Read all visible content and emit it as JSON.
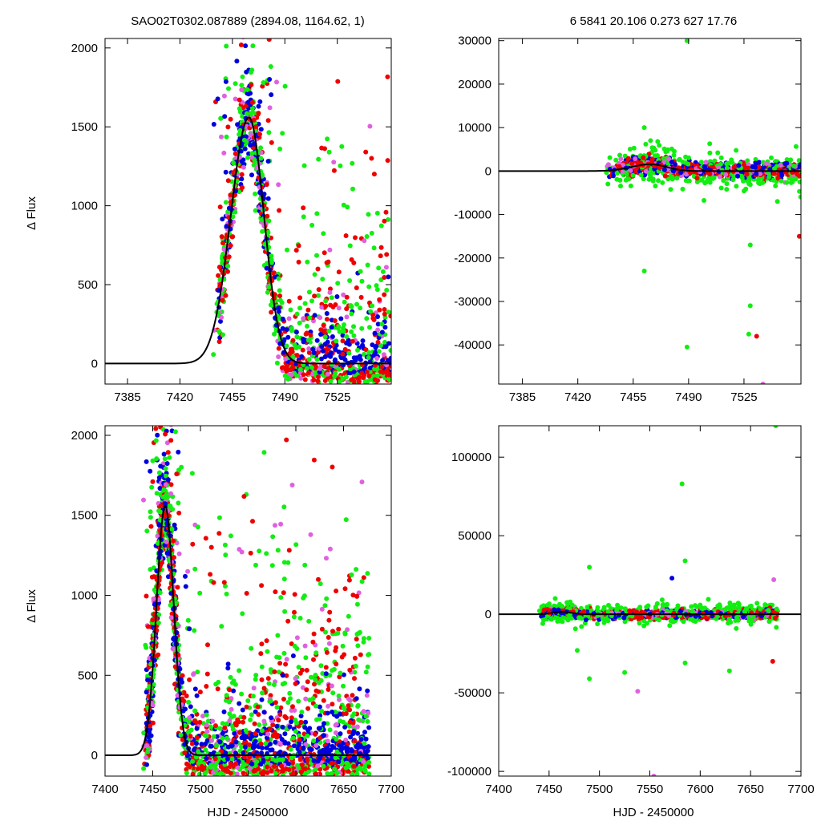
{
  "figure": {
    "title_left": "SAO02T0302.087889 (2894.08, 1164.62,    1)",
    "title_right": "6   5841   20.106   0.273   627   17.76",
    "ylabel": "Δ Flux",
    "xlabel": "HJD - 2450000"
  },
  "colors": {
    "red": "#ee0000",
    "green": "#11ee11",
    "blue": "#0000dd",
    "magenta": "#e060e0",
    "model": "#000000"
  },
  "chart_data": [
    {
      "id": "top-left",
      "type": "scatter",
      "xlim": [
        7370,
        7561
      ],
      "ylim": [
        -130,
        2060
      ],
      "xticks": [
        7385,
        7420,
        7455,
        7490,
        7525
      ],
      "yticks": [
        0,
        500,
        1000,
        1500,
        2000
      ],
      "xlabel": "",
      "ylabel": "Δ Flux",
      "model": {
        "t0": 7466,
        "peak": 1560,
        "sigma_rise": 12,
        "sigma_fall": 10
      },
      "data_range_x": [
        7442,
        7561
      ],
      "n_points": 1300,
      "seed": 11
    },
    {
      "id": "top-right",
      "type": "scatter",
      "xlim": [
        7370,
        7561
      ],
      "ylim": [
        -49000,
        30500
      ],
      "xticks": [
        7385,
        7420,
        7455,
        7490,
        7525
      ],
      "yticks": [
        -40000,
        -30000,
        -20000,
        -10000,
        0,
        10000,
        20000,
        30000
      ],
      "xlabel": "",
      "ylabel": "",
      "model": {
        "t0": 7466,
        "peak": 1560,
        "sigma_rise": 12,
        "sigma_fall": 10
      },
      "data_range_x": [
        7438,
        7561
      ],
      "n_points": 1000,
      "seed": 23,
      "outliers": [
        {
          "x": 7489,
          "y": 30000,
          "color": "green"
        },
        {
          "x": 7462,
          "y": -23000,
          "color": "green"
        },
        {
          "x": 7489,
          "y": -40500,
          "color": "green"
        },
        {
          "x": 7529,
          "y": -31000,
          "color": "green"
        },
        {
          "x": 7528,
          "y": -37500,
          "color": "green"
        },
        {
          "x": 7533,
          "y": -38000,
          "color": "red"
        },
        {
          "x": 7537,
          "y": -49000,
          "color": "magenta"
        },
        {
          "x": 7560,
          "y": -15000,
          "color": "red"
        },
        {
          "x": 7529,
          "y": -17000,
          "color": "green"
        },
        {
          "x": 7462,
          "y": 10000,
          "color": "green"
        }
      ]
    },
    {
      "id": "bottom-left",
      "type": "scatter",
      "xlim": [
        7400,
        7700
      ],
      "ylim": [
        -130,
        2060
      ],
      "xticks": [
        7400,
        7450,
        7500,
        7550,
        7600,
        7650,
        7700
      ],
      "yticks": [
        0,
        500,
        1000,
        1500,
        2000
      ],
      "xlabel": "HJD - 2450000",
      "ylabel": "Δ Flux",
      "model": {
        "t0": 7463,
        "peak": 1560,
        "sigma_rise": 9,
        "sigma_fall": 9
      },
      "data_range_x": [
        7440,
        7677
      ],
      "n_points": 2300,
      "seed": 37
    },
    {
      "id": "bottom-right",
      "type": "scatter",
      "xlim": [
        7400,
        7700
      ],
      "ylim": [
        -103000,
        120000
      ],
      "xticks": [
        7400,
        7450,
        7500,
        7550,
        7600,
        7650,
        7700
      ],
      "yticks": [
        -100000,
        -50000,
        0,
        50000,
        100000
      ],
      "xlabel": "HJD - 2450000",
      "ylabel": "",
      "model": {
        "t0": 7463,
        "peak": 1560,
        "sigma_rise": 9,
        "sigma_fall": 9
      },
      "data_range_x": [
        7440,
        7677
      ],
      "n_points": 1400,
      "seed": 51,
      "outliers": [
        {
          "x": 7675,
          "y": 120000,
          "color": "green"
        },
        {
          "x": 7582,
          "y": 83000,
          "color": "green"
        },
        {
          "x": 7585,
          "y": 34000,
          "color": "green"
        },
        {
          "x": 7490,
          "y": 30000,
          "color": "green"
        },
        {
          "x": 7572,
          "y": 23000,
          "color": "blue"
        },
        {
          "x": 7673,
          "y": 22000,
          "color": "magenta"
        },
        {
          "x": 7490,
          "y": -41000,
          "color": "green"
        },
        {
          "x": 7538,
          "y": -49000,
          "color": "magenta"
        },
        {
          "x": 7554,
          "y": -103000,
          "color": "magenta"
        },
        {
          "x": 7672,
          "y": -30000,
          "color": "red"
        },
        {
          "x": 7629,
          "y": -36000,
          "color": "green"
        },
        {
          "x": 7525,
          "y": -37000,
          "color": "green"
        },
        {
          "x": 7585,
          "y": -31000,
          "color": "green"
        },
        {
          "x": 7478,
          "y": -23000,
          "color": "green"
        }
      ]
    }
  ]
}
